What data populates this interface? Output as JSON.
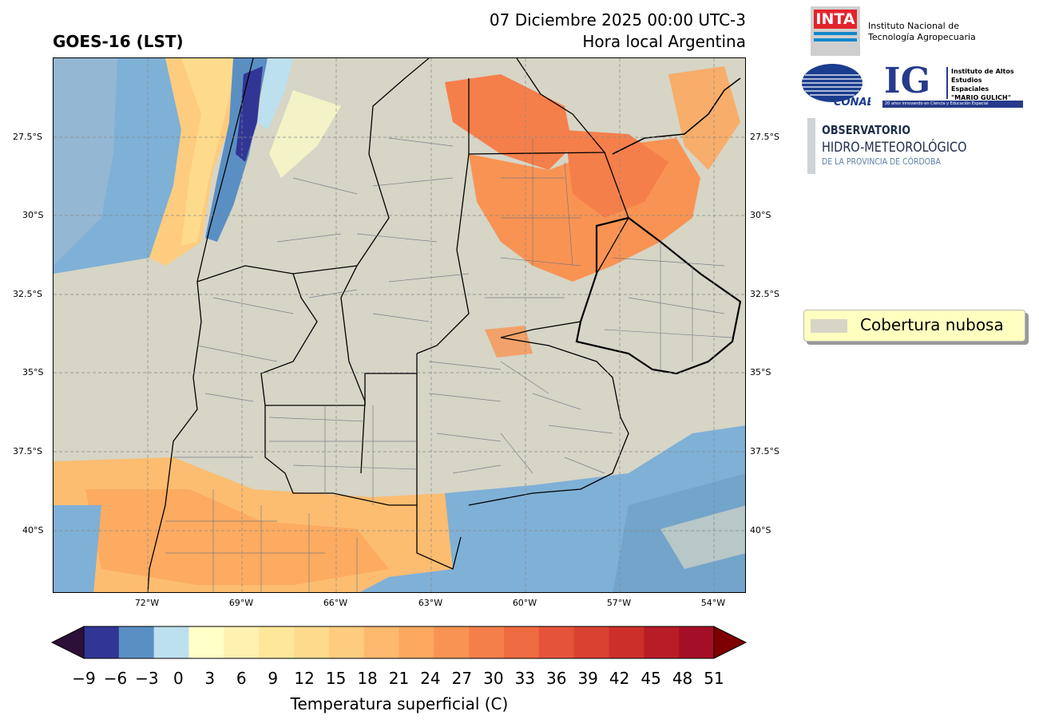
{
  "header": {
    "left_title": "GOES-16 (LST)",
    "date_line": "07 Diciembre 2025 00:00 UTC-3",
    "time_note": "Hora local Argentina"
  },
  "logos": {
    "inta": {
      "mark": "INTA",
      "line1": "Instituto Nacional de",
      "line2": "Tecnología Agropecuaria",
      "color": "#e3232c"
    },
    "conae": {
      "mark": "CONAE",
      "color": "#1b3d8f"
    },
    "ig": {
      "mark": "IG",
      "line1": "Instituto de Altos",
      "line2": "Estudios Espaciales",
      "line3": "\"MARIO GULICH\"",
      "footer": "20 años innovando en Ciencia y Educación Espacial",
      "color": "#263b8c"
    },
    "observatorio": {
      "line1": "OBSERVATORIO",
      "line2": "HIDRO-METEOROLÓGICO",
      "line3": "DE LA PROVINCIA DE CÓRDOBA"
    }
  },
  "map": {
    "lat_labels": [
      "27.5°S",
      "30°S",
      "32.5°S",
      "35°S",
      "37.5°S",
      "40°S"
    ],
    "lon_labels": [
      "72°W",
      "69°W",
      "66°W",
      "63°W",
      "60°W",
      "57°W",
      "54°W"
    ],
    "cloud_color": "#d6d5c6",
    "grid": "dashed"
  },
  "legend": {
    "label": "Cobertura nubosa"
  },
  "colorbar": {
    "ticks": [
      "−9",
      "−6",
      "−3",
      "0",
      "3",
      "6",
      "9",
      "12",
      "15",
      "18",
      "21",
      "24",
      "27",
      "30",
      "33",
      "36",
      "39",
      "42",
      "45",
      "48",
      "51"
    ],
    "colors": [
      "#313695",
      "#5a8fc4",
      "#bde0ee",
      "#ffffc7",
      "#fff1b0",
      "#ffe79a",
      "#fedb8c",
      "#fdcc7e",
      "#fdb96e",
      "#fca85f",
      "#f99353",
      "#f57f4a",
      "#ee6a40",
      "#e5533a",
      "#d94131",
      "#cc2f29",
      "#b81d27",
      "#a50f26"
    ],
    "under_color": "#2d1038",
    "over_color": "#7f0000",
    "title": "Temperatura superficial (C)"
  }
}
